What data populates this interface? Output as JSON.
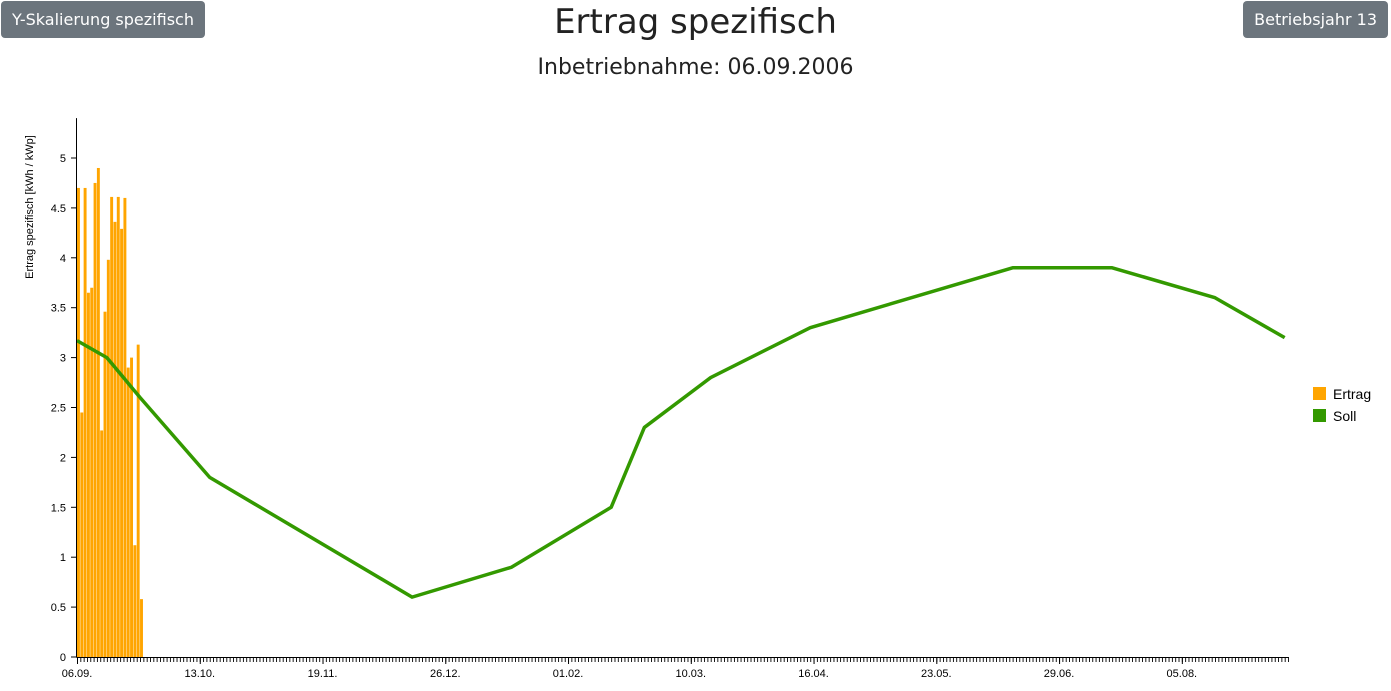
{
  "buttons": {
    "y_scale": "Y-Skalierung spezifisch",
    "year": "Betriebsjahr 13"
  },
  "chart_data": {
    "type": "bar",
    "title": "Ertrag spezifisch",
    "subtitle": "Inbetriebnahme: 06.09.2006",
    "ylabel": "Ertrag spezifisch [kWh / kWp]",
    "xlabel": "",
    "ylim": [
      0,
      5.4
    ],
    "yticks": [
      0,
      0.5,
      1,
      1.5,
      2,
      2.5,
      3,
      3.5,
      4,
      4.5,
      5
    ],
    "ytick_labels": [
      "0",
      "0.5",
      "1",
      "1.5",
      "2",
      "2.5",
      "3",
      "3.5",
      "4",
      "4.5",
      "5"
    ],
    "x_day_count": 365,
    "xticks": [
      {
        "day": 0,
        "label": "06.09."
      },
      {
        "day": 37,
        "label": "13.10."
      },
      {
        "day": 74,
        "label": "19.11."
      },
      {
        "day": 111,
        "label": "26.12."
      },
      {
        "day": 148,
        "label": "01.02."
      },
      {
        "day": 185,
        "label": "10.03."
      },
      {
        "day": 222,
        "label": "16.04."
      },
      {
        "day": 259,
        "label": "23.05."
      },
      {
        "day": 296,
        "label": "29.06."
      },
      {
        "day": 333,
        "label": "05.08."
      }
    ],
    "grid": false,
    "legend_position": "right",
    "series": [
      {
        "name": "Ertrag",
        "type": "bar",
        "color": "#FFA500",
        "values": [
          4.7,
          2.45,
          4.7,
          3.65,
          3.7,
          4.75,
          4.9,
          2.27,
          3.46,
          3.98,
          4.61,
          4.36,
          4.61,
          4.29,
          4.6,
          2.9,
          3.0,
          1.12,
          3.13,
          0.58
        ]
      },
      {
        "name": "Soll",
        "type": "line",
        "color": "#339900",
        "points": [
          {
            "x": 0,
            "y": 3.17
          },
          {
            "x": 9,
            "y": 3.0
          },
          {
            "x": 19,
            "y": 2.6
          },
          {
            "x": 40,
            "y": 1.8
          },
          {
            "x": 101,
            "y": 0.6
          },
          {
            "x": 131,
            "y": 0.9
          },
          {
            "x": 161,
            "y": 1.5
          },
          {
            "x": 171,
            "y": 2.3
          },
          {
            "x": 191,
            "y": 2.8
          },
          {
            "x": 221,
            "y": 3.3
          },
          {
            "x": 282,
            "y": 3.9
          },
          {
            "x": 312,
            "y": 3.9
          },
          {
            "x": 343,
            "y": 3.6
          },
          {
            "x": 364,
            "y": 3.2
          }
        ]
      }
    ]
  }
}
